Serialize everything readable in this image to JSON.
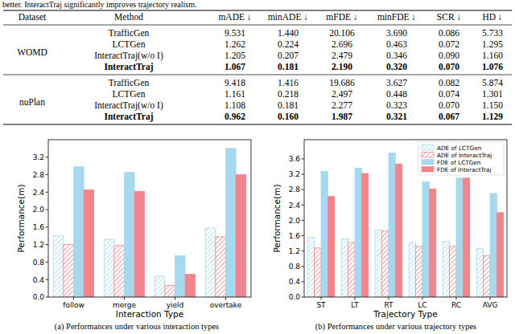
{
  "caption": "better. InteractTraj significantly improves trajectory realism.",
  "table": {
    "columns": [
      "Dataset",
      "Method",
      "mADE ↓",
      "minADE ↓",
      "mFDE ↓",
      "minFDE ↓",
      "SCR ↓",
      "HD ↓"
    ],
    "groups": [
      {
        "dataset": "WOMD",
        "rows": [
          {
            "method": "TrafficGen",
            "values": [
              "9.531",
              "1.440",
              "20.106",
              "3.690",
              "0.086",
              "5.733"
            ]
          },
          {
            "method": "LCTGen",
            "values": [
              "1.262",
              "0.224",
              "2.696",
              "0.463",
              "0.072",
              "1.295"
            ]
          },
          {
            "method": "InteractTraj(w/o I)",
            "values": [
              "1.205",
              "0.207",
              "2.479",
              "0.346",
              "0.090",
              "1.160"
            ]
          },
          {
            "method": "InteractTraj",
            "values": [
              "1.067",
              "0.181",
              "2.190",
              "0.320",
              "0.070",
              "1.076"
            ],
            "bold": true
          }
        ]
      },
      {
        "dataset": "nuPlan",
        "rows": [
          {
            "method": "TrafficGen",
            "values": [
              "9.418",
              "1.416",
              "19.686",
              "3.627",
              "0.082",
              "5.874"
            ]
          },
          {
            "method": "LCTGen",
            "values": [
              "1.161",
              "0.218",
              "2.497",
              "0.448",
              "0.074",
              "1.301"
            ]
          },
          {
            "method": "InteractTraj(w/o I)",
            "values": [
              "1.108",
              "0.181",
              "2.277",
              "0.323",
              "0.070",
              "1.150"
            ]
          },
          {
            "method": "InteractTraj",
            "values": [
              "0.962",
              "0.160",
              "1.987",
              "0.321",
              "0.067",
              "1.129"
            ],
            "bold": true
          }
        ]
      }
    ]
  },
  "chart_data": [
    {
      "type": "bar",
      "categories": [
        "follow",
        "merge",
        "yield",
        "overtake"
      ],
      "x_label": "Interaction Type",
      "y_label": "Performance(m)",
      "caption": "(a) Performances under various interaction types",
      "ylim": [
        0,
        3.6
      ],
      "yticks": [
        {
          "value": 0,
          "label": "0.0"
        },
        0.4,
        0.8,
        1.2,
        1.6,
        {
          "value": 2,
          "label": "2.0"
        },
        2.4,
        2.8,
        3.2
      ],
      "grid": false,
      "series": [
        {
          "color": "#a6d8ee",
          "line_style": "hatched",
          "values": [
            1.4,
            1.32,
            0.48,
            1.58
          ]
        },
        {
          "color": "#f3848c",
          "line_style": "hatched",
          "values": [
            1.2,
            1.18,
            0.27,
            1.38
          ]
        },
        {
          "color": "#a6d8ee",
          "line_style": "solid",
          "values": [
            2.98,
            2.85,
            0.95,
            3.4
          ]
        },
        {
          "color": "#f3848c",
          "line_style": "solid",
          "values": [
            2.45,
            2.42,
            0.52,
            2.8
          ]
        }
      ]
    },
    {
      "type": "bar",
      "categories": [
        "ST",
        "LT",
        "RT",
        "LC",
        "RC",
        "AVG"
      ],
      "x_label": "Trajectory Type",
      "y_label": "Performance(m)",
      "caption": "(b) Performances under various trajectory types",
      "ylim": [
        0,
        4.1
      ],
      "yticks": [
        {
          "value": 0,
          "label": "0.0"
        },
        0.4,
        0.8,
        1.2,
        1.6,
        {
          "value": 2,
          "label": "2.0"
        },
        2.4,
        2.8,
        3.2,
        3.6
      ],
      "grid": false,
      "legend": "upper right",
      "series": [
        {
          "name": "ADE of LCTGen",
          "color": "#a6d8ee",
          "line_style": "hatched",
          "values": [
            1.55,
            1.52,
            1.75,
            1.42,
            1.45,
            1.26
          ]
        },
        {
          "name": "ADE of InteractTraj",
          "color": "#f3848c",
          "line_style": "hatched",
          "values": [
            1.28,
            1.42,
            1.72,
            1.32,
            1.32,
            1.08
          ]
        },
        {
          "name": "FDE of LCTGen",
          "color": "#a6d8ee",
          "line_style": "solid",
          "values": [
            3.28,
            3.36,
            3.75,
            3.0,
            3.1,
            2.7
          ]
        },
        {
          "name": "FDE of InteractTraj",
          "color": "#f3848c",
          "line_style": "solid",
          "values": [
            2.62,
            3.22,
            3.47,
            2.82,
            3.1,
            2.2
          ]
        }
      ]
    }
  ]
}
